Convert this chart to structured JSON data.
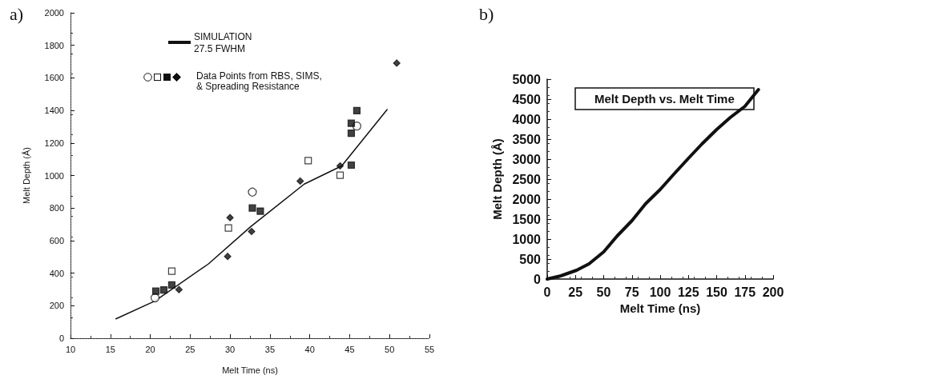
{
  "chart_data": [
    {
      "type": "scatter",
      "xlabel": "Melt Time (ns)",
      "ylabel": "Melt Depth (Å)",
      "xlim": [
        10,
        55
      ],
      "xticks": [
        10,
        15,
        20,
        25,
        30,
        35,
        40,
        45,
        50,
        55
      ],
      "ylim": [
        0,
        2000
      ],
      "yticks": [
        0,
        200,
        400,
        600,
        800,
        1000,
        1200,
        1400,
        1600,
        1800,
        2000
      ],
      "grid": false,
      "legend": "top",
      "annotations": [
        "a)",
        "Data Points from RBS, SIMS, & Spreading Resistance"
      ],
      "series": [
        {
          "type": "line",
          "name": "SIMULATION\n27.5 FWHM",
          "color": "#111111",
          "marker": "none",
          "line_style": "solid",
          "x": [
            15.7,
            20.6,
            27.3,
            32.6,
            39.3,
            44.0,
            49.7
          ],
          "values": [
            119,
            229,
            457,
            686,
            947,
            1059,
            1405
          ]
        },
        {
          "color": "#ffffff",
          "marker": "circle",
          "x": [
            20.6,
            32.8,
            45.9
          ],
          "values": [
            248,
            898,
            1304
          ]
        },
        {
          "color": "#ffffff",
          "marker": "square",
          "x": [
            22.7,
            29.8,
            39.8,
            43.8
          ],
          "values": [
            412,
            678,
            1092,
            1002
          ]
        },
        {
          "color": "#111111",
          "marker": "square",
          "x": [
            20.7,
            21.7,
            22.7,
            32.8,
            33.8,
            45.2,
            45.2,
            45.9,
            45.2
          ],
          "values": [
            289,
            297,
            327,
            800,
            781,
            1260,
            1321,
            1399,
            1064
          ]
        },
        {
          "color": "#111111",
          "marker": "diamond",
          "x": [
            23.6,
            29.7,
            30.0,
            32.7,
            38.8,
            43.8,
            50.9
          ],
          "values": [
            299,
            503,
            741,
            656,
            966,
            1059,
            1691
          ]
        }
      ]
    },
    {
      "type": "line",
      "title": "Melt Depth vs. Melt Time",
      "xlabel": "Melt Time (ns)",
      "ylabel": "Melt Depth (Å)",
      "xlim": [
        0,
        200
      ],
      "xticks": [
        0,
        25,
        50,
        75,
        100,
        125,
        150,
        175,
        200
      ],
      "ylim": [
        0,
        5000
      ],
      "yticks": [
        0,
        500,
        1000,
        1500,
        2000,
        2500,
        3000,
        3500,
        4000,
        4500,
        5000
      ],
      "grid": false,
      "legend": false,
      "marker": "none",
      "line_style": "solid",
      "annotations": [
        "b)"
      ],
      "series": [
        {
          "color": "#111111",
          "x": [
            0,
            12,
            26,
            37,
            50,
            62,
            75,
            87,
            100,
            112,
            125,
            137,
            150,
            162,
            175,
            187
          ],
          "values": [
            0,
            80,
            220,
            380,
            680,
            1080,
            1460,
            1880,
            2240,
            2620,
            3020,
            3380,
            3740,
            4040,
            4320,
            4740
          ]
        }
      ]
    }
  ]
}
